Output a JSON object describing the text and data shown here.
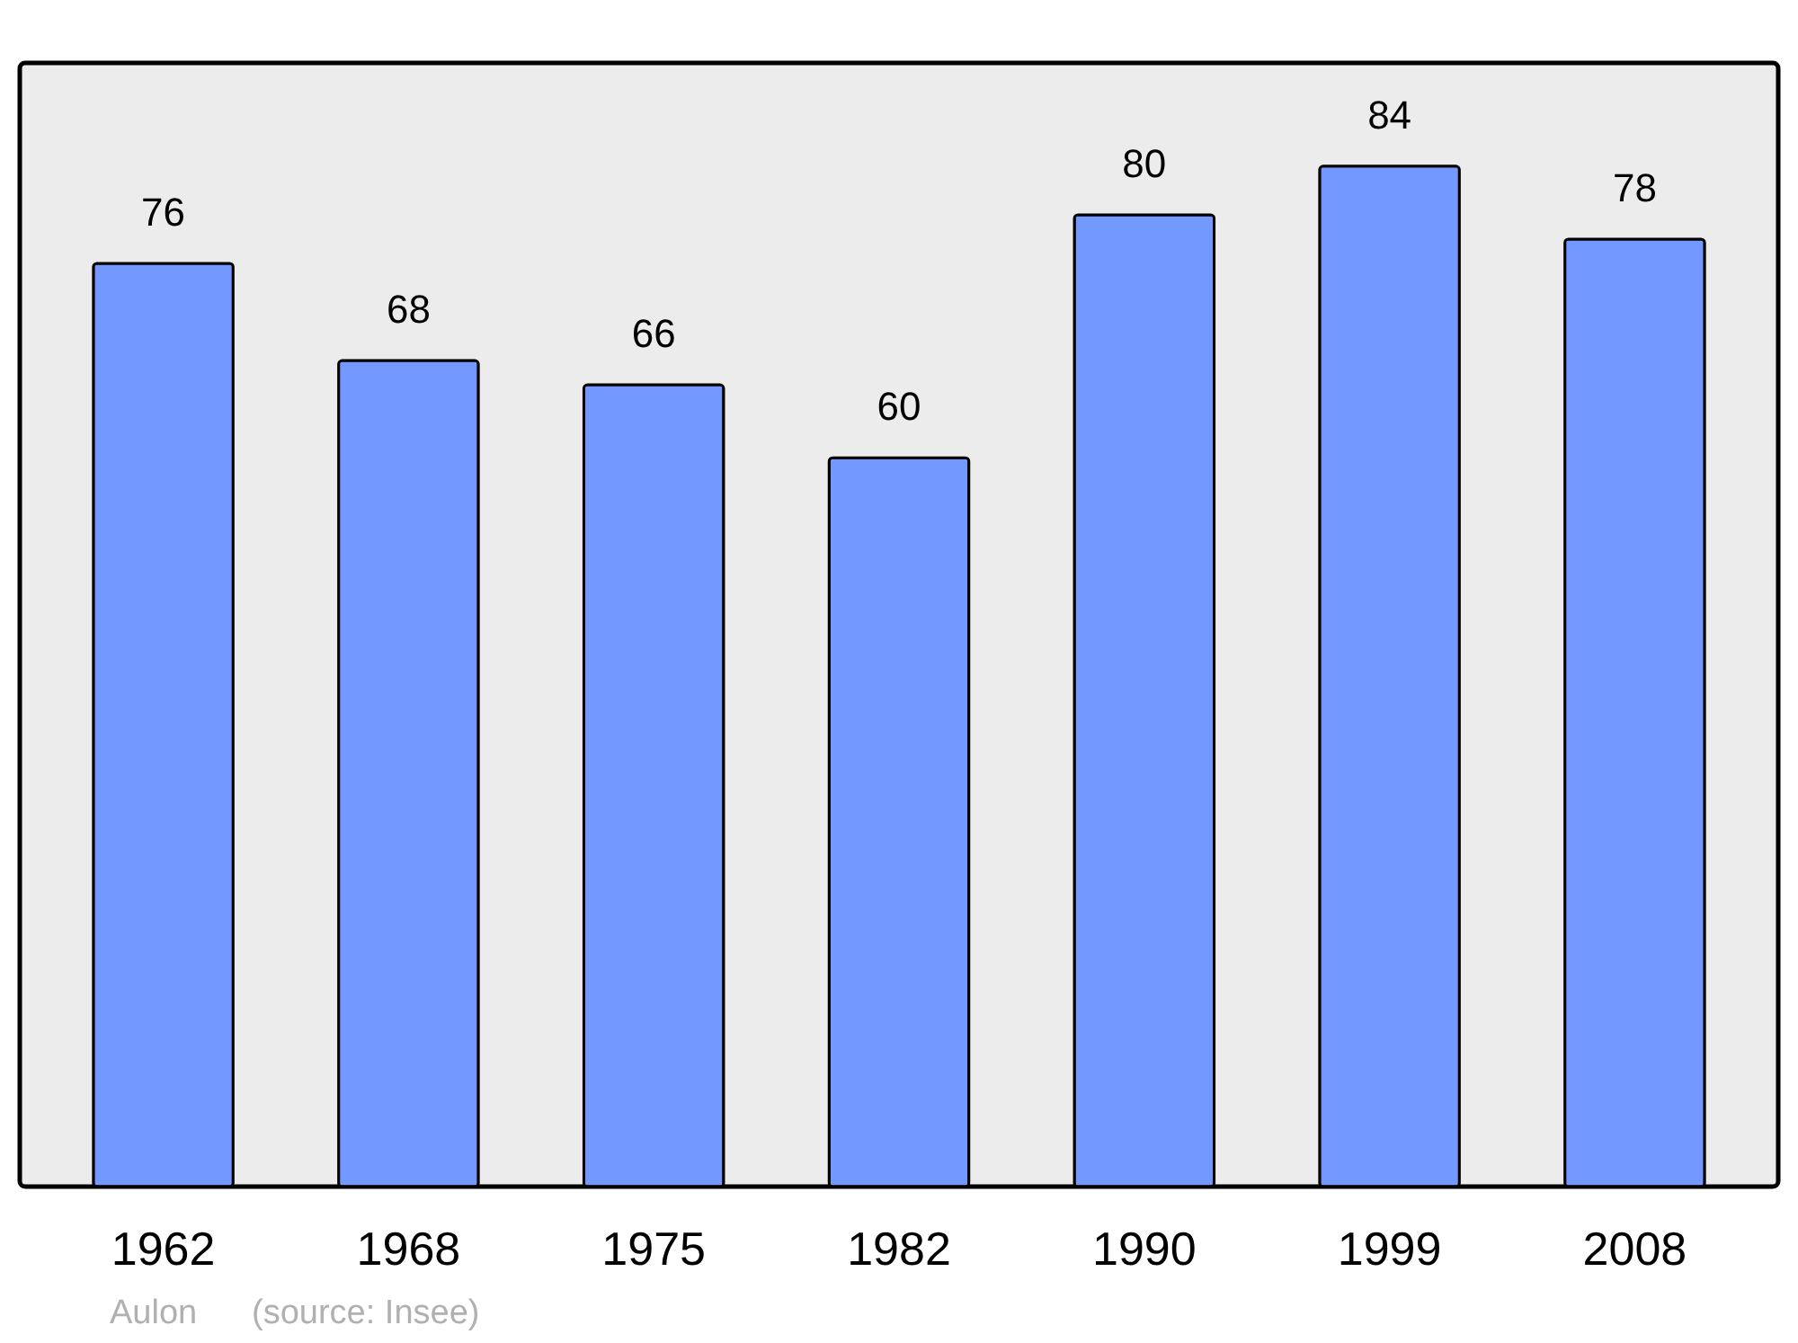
{
  "chart_data": {
    "type": "bar",
    "categories": [
      "1962",
      "1968",
      "1975",
      "1982",
      "1990",
      "1999",
      "2008"
    ],
    "values": [
      76,
      68,
      66,
      60,
      80,
      84,
      78
    ],
    "color": "#7399ff",
    "ylim": [
      0,
      92.5
    ],
    "data_labels": true,
    "grid": false,
    "annotations": [
      "Aulon",
      "(source: Insee)"
    ]
  }
}
